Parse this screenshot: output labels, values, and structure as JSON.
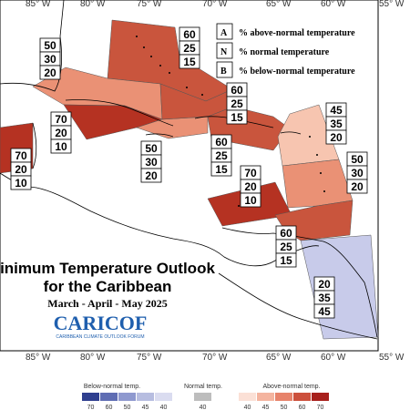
{
  "map": {
    "lon_labels": [
      "85° W",
      "80° W",
      "75° W",
      "70° W",
      "65° W",
      "60° W",
      "55° W"
    ],
    "title_line1": "inimum Temperature Outlook",
    "title_line2": "for the Caribbean",
    "period": "March - April - May 2025",
    "logo_text": "CARICOF",
    "logo_sub": "CARIBBEAN CLIMATE OUTLOOK FORUM"
  },
  "legend": {
    "items": [
      {
        "key": "A",
        "text": "% above-normal temperature"
      },
      {
        "key": "N",
        "text": "% normal temperature"
      },
      {
        "key": "B",
        "text": "% below-normal temperature"
      }
    ]
  },
  "regions": [
    {
      "name": "bahamas-north",
      "a": "60",
      "n": "25",
      "b": "15",
      "color": "#c9553d"
    },
    {
      "name": "bahamas-west",
      "a": "50",
      "n": "30",
      "b": "20",
      "color": "#ea9175"
    },
    {
      "name": "cuba-east",
      "a": "70",
      "n": "20",
      "b": "10",
      "color": "#b53222"
    },
    {
      "name": "belize",
      "a": "70",
      "n": "20",
      "b": "10",
      "color": "#b53222"
    },
    {
      "name": "jamaica",
      "a": "50",
      "n": "30",
      "b": "20",
      "color": "#ea9175"
    },
    {
      "name": "turks-caicos",
      "a": "60",
      "n": "25",
      "b": "15",
      "color": "#c9553d"
    },
    {
      "name": "hispaniola",
      "a": "60",
      "n": "25",
      "b": "15",
      "color": "#c9553d"
    },
    {
      "name": "leewards",
      "a": "45",
      "n": "35",
      "b": "20",
      "color": "#f7c5b0"
    },
    {
      "name": "windwards",
      "a": "50",
      "n": "30",
      "b": "20",
      "color": "#ea9175"
    },
    {
      "name": "abc-islands",
      "a": "70",
      "n": "20",
      "b": "10",
      "color": "#b53222"
    },
    {
      "name": "trinidad",
      "a": "60",
      "n": "25",
      "b": "15",
      "color": "#c9553d"
    },
    {
      "name": "guianas",
      "a": "20",
      "n": "35",
      "b": "45",
      "color": "#c8cbea"
    }
  ],
  "scale": {
    "below_title": "Below-normal temp.",
    "normal_title": "Normal temp.",
    "above_title": "Above-normal temp.",
    "below_ticks": [
      "70",
      "60",
      "50",
      "45",
      "40"
    ],
    "normal_ticks": [
      "40"
    ],
    "above_ticks": [
      "40",
      "45",
      "50",
      "60",
      "70"
    ],
    "below_colors": [
      "#2f3f8f",
      "#5f6db3",
      "#8f99cf",
      "#b7bde0",
      "#dadcf0"
    ],
    "normal_color": "#bdbdbd",
    "above_colors": [
      "#fbe0d6",
      "#f4b49f",
      "#e7836b",
      "#cc503c",
      "#a8201c"
    ]
  }
}
